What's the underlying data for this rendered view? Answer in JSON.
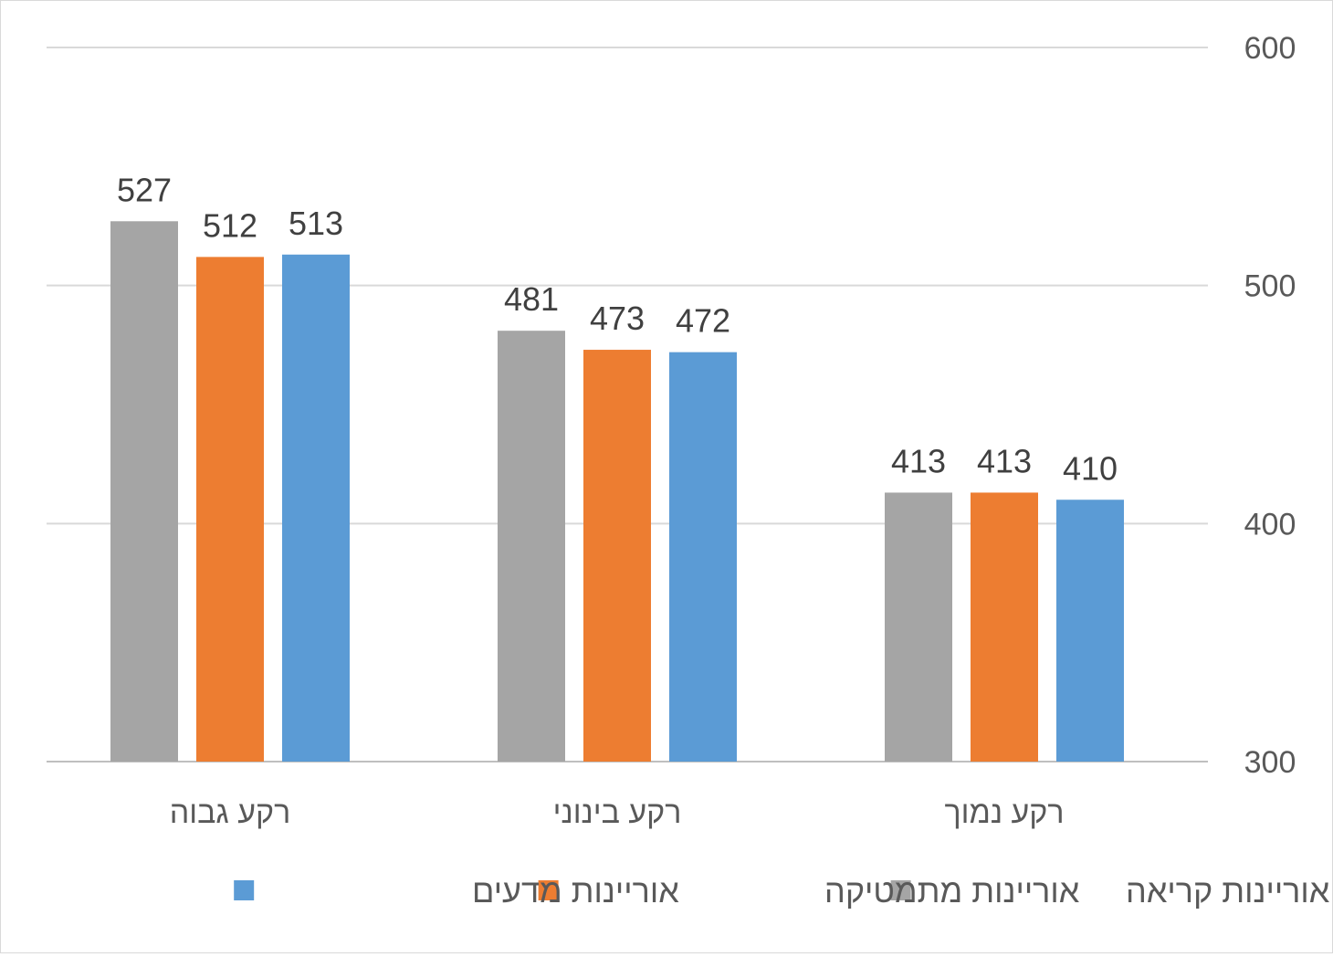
{
  "chart_data": {
    "type": "bar",
    "categories": [
      "רקע גבוה",
      "רקע בינוני",
      "רקע נמוך"
    ],
    "series": [
      {
        "name": "אוריינות קריאה",
        "color": "#a5a5a5",
        "values": [
          527,
          481,
          413
        ]
      },
      {
        "name": "אוריינות מתמטיקה",
        "color": "#ed7d31",
        "values": [
          512,
          473,
          413
        ]
      },
      {
        "name": "אוריינות מדעים",
        "color": "#5b9bd5",
        "values": [
          513,
          472,
          410
        ]
      }
    ],
    "ylim": [
      300,
      600
    ],
    "yticks": [
      300,
      400,
      500,
      600
    ],
    "y_axis_side": "right",
    "grid": true,
    "legend_position": "bottom",
    "title": "",
    "xlabel": "",
    "ylabel": ""
  }
}
